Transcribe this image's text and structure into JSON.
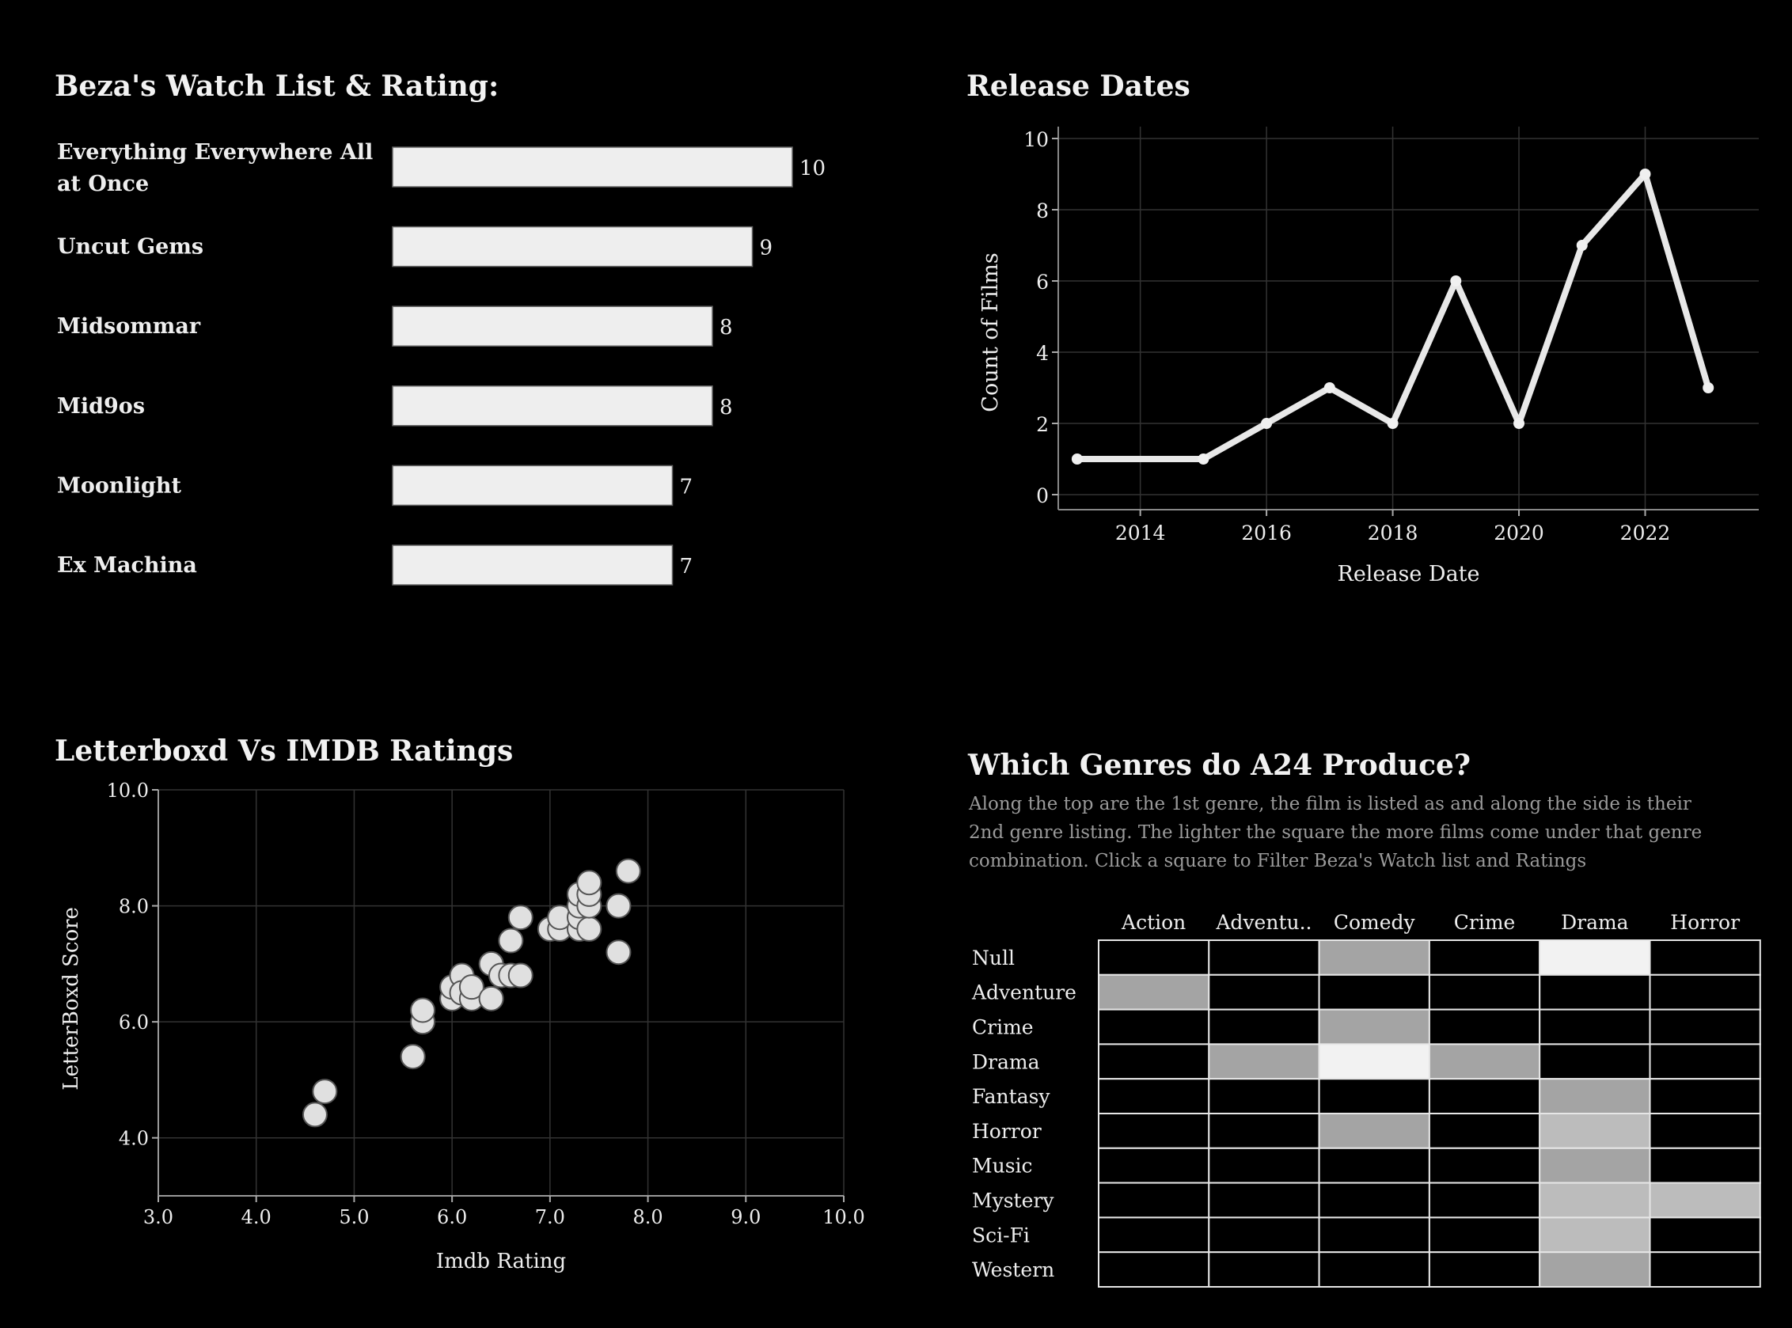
{
  "colors": {
    "background": "#000000",
    "foreground": "#eeeeee",
    "bar_fill": "#eeeeee",
    "muted_text": "#9a9a9a",
    "grid": "#333333"
  },
  "watch_list": {
    "title": "Beza's Watch List & Rating:",
    "chart_data": {
      "type": "bar",
      "orientation": "horizontal",
      "categories": [
        "Everything Everywhere All at Once",
        "Uncut Gems",
        "Midsommar",
        "Mid90s",
        "Moonlight",
        "Ex Machina"
      ],
      "category_display": [
        [
          "Everything Everywhere All",
          "at Once"
        ],
        [
          "Uncut Gems"
        ],
        [
          "Midsommar"
        ],
        [
          "Mid9os"
        ],
        [
          "Moonlight"
        ],
        [
          "Ex Machina"
        ]
      ],
      "values": [
        10,
        9,
        8,
        8,
        7,
        7
      ],
      "value_labels": [
        "10",
        "9",
        "8",
        "8",
        "7",
        "7"
      ],
      "xlim": [
        0,
        10
      ]
    }
  },
  "release_dates": {
    "title": "Release Dates",
    "chart_data": {
      "type": "line",
      "x": [
        2013,
        2015,
        2016,
        2017,
        2018,
        2019,
        2020,
        2021,
        2022,
        2023
      ],
      "y": [
        1,
        1,
        2,
        3,
        2,
        6,
        2,
        7,
        9,
        3
      ],
      "xlabel": "Release Date",
      "ylabel": "Count of Films",
      "xlim": [
        2012.7,
        2023.8
      ],
      "ylim": [
        0,
        10
      ],
      "xticks": [
        2014,
        2016,
        2018,
        2020,
        2022
      ],
      "yticks": [
        0,
        2,
        4,
        6,
        8,
        10
      ],
      "xtick_labels": [
        "2014",
        "2016",
        "2018",
        "2020",
        "2022"
      ],
      "ytick_labels": [
        "0",
        "2",
        "4",
        "6",
        "8",
        "10"
      ],
      "grid": true
    }
  },
  "letterboxd_imdb": {
    "title": "Letterboxd Vs IMDB Ratings",
    "chart_data": {
      "type": "scatter",
      "points": [
        [
          4.6,
          4.4
        ],
        [
          4.7,
          4.8
        ],
        [
          5.6,
          5.4
        ],
        [
          5.7,
          6.0
        ],
        [
          5.7,
          6.2
        ],
        [
          6.0,
          6.4
        ],
        [
          6.0,
          6.6
        ],
        [
          6.1,
          6.8
        ],
        [
          6.1,
          6.5
        ],
        [
          6.2,
          6.4
        ],
        [
          6.2,
          6.6
        ],
        [
          6.4,
          6.4
        ],
        [
          6.4,
          7.0
        ],
        [
          6.5,
          6.8
        ],
        [
          6.6,
          6.8
        ],
        [
          6.6,
          7.4
        ],
        [
          6.7,
          6.8
        ],
        [
          6.7,
          7.8
        ],
        [
          7.0,
          7.6
        ],
        [
          7.1,
          7.6
        ],
        [
          7.1,
          7.8
        ],
        [
          7.3,
          7.6
        ],
        [
          7.3,
          7.8
        ],
        [
          7.3,
          8.0
        ],
        [
          7.3,
          8.2
        ],
        [
          7.4,
          7.6
        ],
        [
          7.4,
          8.0
        ],
        [
          7.4,
          8.2
        ],
        [
          7.4,
          8.4
        ],
        [
          7.7,
          7.2
        ],
        [
          7.7,
          8.0
        ],
        [
          7.8,
          8.6
        ]
      ],
      "xlabel": "Imdb Rating",
      "ylabel": "LetterBoxd Score",
      "xlim": [
        3.0,
        10.0
      ],
      "ylim": [
        3.0,
        10.0
      ],
      "xticks": [
        3.0,
        4.0,
        5.0,
        6.0,
        7.0,
        8.0,
        9.0,
        10.0
      ],
      "yticks": [
        4.0,
        6.0,
        8.0,
        10.0
      ],
      "xtick_labels": [
        "3.0",
        "4.0",
        "5.0",
        "6.0",
        "7.0",
        "8.0",
        "9.0",
        "10.0"
      ],
      "ytick_labels": [
        "4.0",
        "6.0",
        "8.0",
        "10.0"
      ],
      "grid": true
    }
  },
  "genres": {
    "title": "Which Genres do A24 Produce?",
    "description": "Along the top are the 1st genre, the film is listed as and along the side is their 2nd genre listing. The lighter the square the more films come under that genre combination. Click a square to Filter Beza's Watch list and Ratings",
    "chart_data": {
      "type": "heatmap",
      "columns": [
        "Action",
        "Adventu..",
        "Comedy",
        "Crime",
        "Drama",
        "Horror"
      ],
      "rows": [
        "Null",
        "Adventure",
        "Crime",
        "Drama",
        "Fantasy",
        "Horror",
        "Music",
        "Mystery",
        "Sci-Fi",
        "Western"
      ],
      "values": [
        [
          0,
          0,
          2,
          0,
          4,
          0
        ],
        [
          2,
          0,
          0,
          0,
          0,
          0
        ],
        [
          0,
          0,
          2,
          0,
          0,
          0
        ],
        [
          0,
          2,
          4,
          2,
          0,
          0
        ],
        [
          0,
          0,
          0,
          0,
          2,
          0
        ],
        [
          0,
          0,
          2,
          0,
          3,
          0
        ],
        [
          0,
          0,
          0,
          0,
          2,
          0
        ],
        [
          0,
          0,
          0,
          0,
          3,
          3
        ],
        [
          0,
          0,
          0,
          0,
          3,
          0
        ],
        [
          0,
          0,
          0,
          0,
          2,
          0
        ]
      ],
      "vmax": 4,
      "color_zero": "#000000",
      "color_scale": [
        "#a4a4a4",
        "#bcbcbc",
        "#f2f2f2"
      ]
    }
  }
}
